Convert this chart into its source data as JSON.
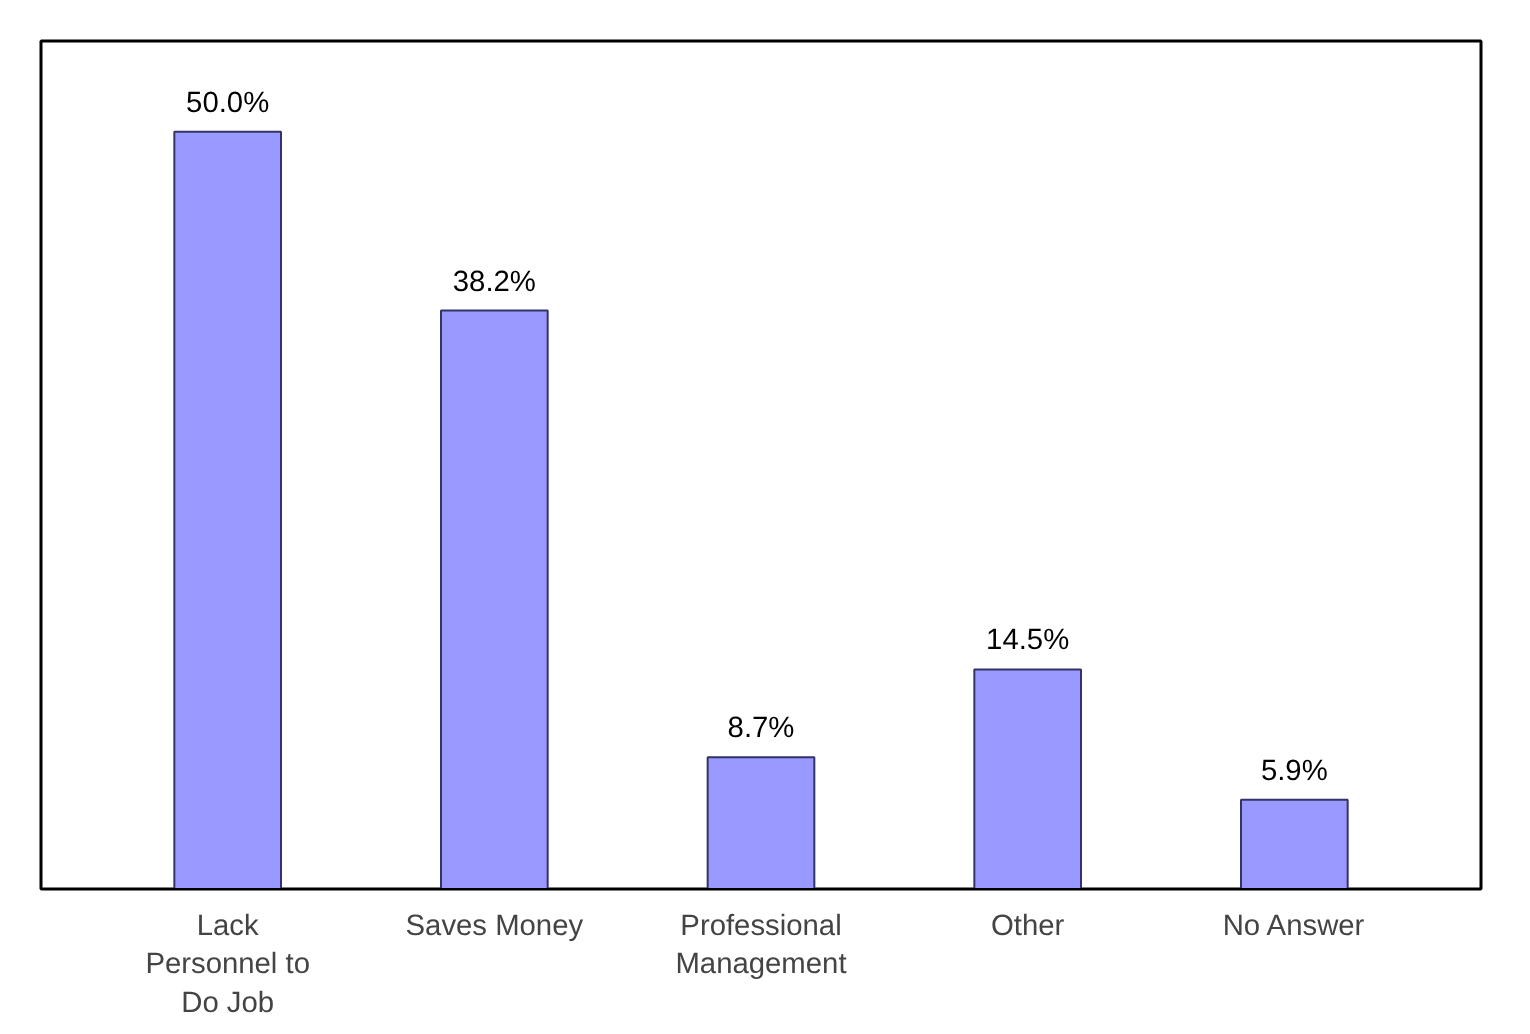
{
  "chart_data": {
    "type": "bar",
    "categories": [
      "Lack Personnel to Do Job",
      "Saves Money",
      "Professional Management",
      "Other",
      "No Answer"
    ],
    "values": [
      50.0,
      38.2,
      8.7,
      14.5,
      5.9
    ],
    "value_labels": [
      "50.0%",
      "38.2%",
      "8.7%",
      "14.5%",
      "5.9%"
    ],
    "color": "#9999ff"
  }
}
